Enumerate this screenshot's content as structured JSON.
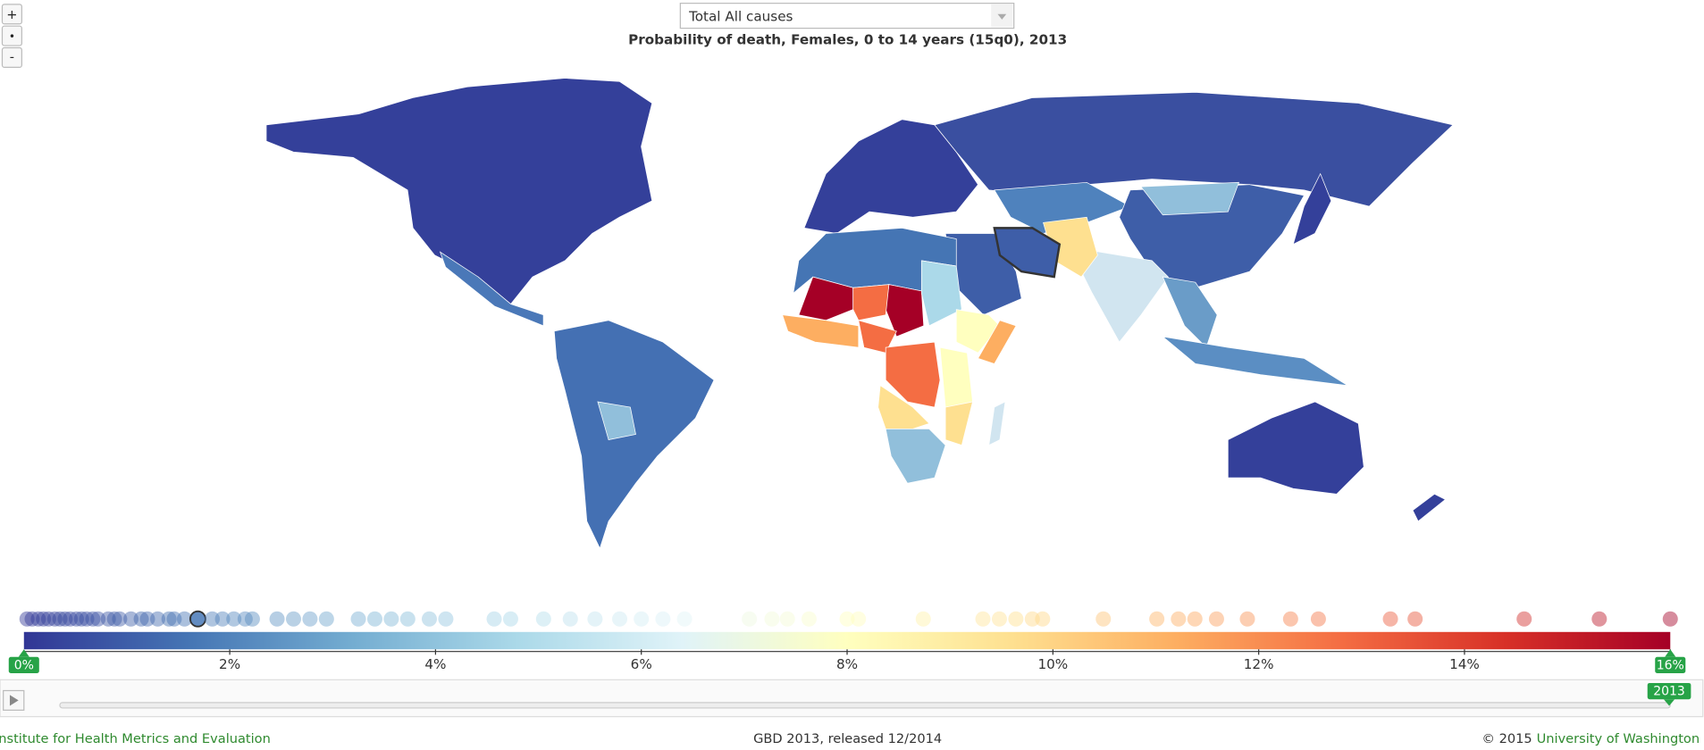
{
  "controls": {
    "zoom_in": "+",
    "zoom_reset": "•",
    "zoom_out": "-"
  },
  "cause_select": "Total All causes",
  "title": "Probability of death, Females, 0 to 14 years (15q0), 2013",
  "legend": {
    "range": [
      {
        "value": 0,
        "label": "0%"
      },
      {
        "value": 16,
        "label": "16%"
      }
    ],
    "ticks": [
      {
        "value": 2,
        "label": "2%"
      },
      {
        "value": 4,
        "label": "4%"
      },
      {
        "value": 6,
        "label": "6%"
      },
      {
        "value": 8,
        "label": "8%"
      },
      {
        "value": 10,
        "label": "10%"
      },
      {
        "value": 12,
        "label": "12%"
      },
      {
        "value": 14,
        "label": "14%"
      },
      {
        "value": 16,
        "label": "16%"
      }
    ],
    "colors": [
      "#313695",
      "#4575b4",
      "#74add1",
      "#abd9e9",
      "#e0f3f8",
      "#ffffbf",
      "#fee090",
      "#fdae61",
      "#f46d43",
      "#d73027",
      "#a50026"
    ],
    "country_values": [
      0.03,
      0.08,
      0.14,
      0.19,
      0.24,
      0.3,
      0.35,
      0.4,
      0.45,
      0.51,
      0.56,
      0.61,
      0.67,
      0.72,
      0.82,
      0.88,
      0.93,
      1.04,
      1.14,
      1.2,
      1.3,
      1.41,
      1.46,
      1.56,
      1.69,
      1.83,
      1.93,
      2.04,
      2.15,
      2.22,
      2.46,
      2.62,
      2.78,
      2.94,
      3.25,
      3.41,
      3.57,
      3.73,
      3.94,
      4.1,
      4.57,
      4.73,
      5.05,
      5.31,
      5.55,
      5.79,
      6.0,
      6.21,
      6.42,
      7.05,
      7.27,
      7.42,
      7.63,
      8.0,
      8.11,
      8.74,
      9.32,
      9.48,
      9.64,
      9.8,
      9.9,
      10.49,
      11.01,
      11.22,
      11.38,
      11.59,
      11.89,
      12.31,
      12.58,
      13.28,
      13.52,
      14.58,
      15.31,
      16.0
    ],
    "selected_index": 24
  },
  "timeline": {
    "year": "2013"
  },
  "footer": {
    "left": "Institute for Health Metrics and Evaluation",
    "center": "GBD 2013, released 12/2014",
    "right_prefix": "© 2015",
    "right_link": "University of Washington"
  }
}
